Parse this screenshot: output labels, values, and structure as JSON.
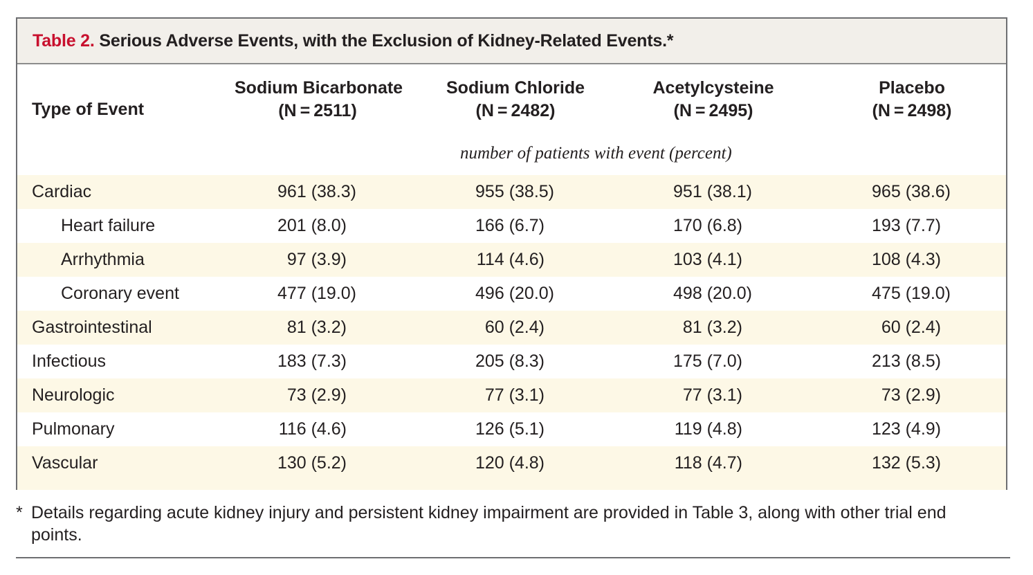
{
  "title": {
    "label": "Table 2.",
    "text": "Serious Adverse Events, with the Exclusion of Kidney-Related Events.*"
  },
  "columns": {
    "type_header": "Type of Event",
    "groups": [
      {
        "name": "Sodium Bicarbonate",
        "n": "(N = 2511)"
      },
      {
        "name": "Sodium Chloride",
        "n": "(N = 2482)"
      },
      {
        "name": "Acetylcysteine",
        "n": "(N = 2495)"
      },
      {
        "name": "Placebo",
        "n": "(N = 2498)"
      }
    ]
  },
  "units_note": "number of patients with event  (percent)",
  "rows": [
    {
      "label": "Cardiac",
      "indent": 0,
      "values": [
        "961 (38.3)",
        "955 (38.5)",
        "951 (38.1)",
        "965 (38.6)"
      ]
    },
    {
      "label": "Heart failure",
      "indent": 1,
      "values": [
        "201 (8.0)",
        "166 (6.7)",
        "170 (6.8)",
        "193 (7.7)"
      ]
    },
    {
      "label": "Arrhythmia",
      "indent": 1,
      "values": [
        "97 (3.9)",
        "114 (4.6)",
        "103 (4.1)",
        "108 (4.3)"
      ]
    },
    {
      "label": "Coronary event",
      "indent": 1,
      "values": [
        "477 (19.0)",
        "496 (20.0)",
        "498 (20.0)",
        "475 (19.0)"
      ]
    },
    {
      "label": "Gastrointestinal",
      "indent": 0,
      "values": [
        "81 (3.2)",
        "60 (2.4)",
        "81 (3.2)",
        "60 (2.4)"
      ]
    },
    {
      "label": "Infectious",
      "indent": 0,
      "values": [
        "183 (7.3)",
        "205 (8.3)",
        "175 (7.0)",
        "213 (8.5)"
      ]
    },
    {
      "label": "Neurologic",
      "indent": 0,
      "values": [
        "73 (2.9)",
        "77 (3.1)",
        "77 (3.1)",
        "73 (2.9)"
      ]
    },
    {
      "label": "Pulmonary",
      "indent": 0,
      "values": [
        "116 (4.6)",
        "126 (5.1)",
        "119 (4.8)",
        "123 (4.9)"
      ]
    },
    {
      "label": "Vascular",
      "indent": 0,
      "values": [
        "130 (5.2)",
        "120 (4.8)",
        "118 (4.7)",
        "132 (5.3)"
      ]
    }
  ],
  "footnote": {
    "marker": "*",
    "text": "Details regarding acute kidney injury and persistent kidney impairment are provided in Table 3, along with other trial end points."
  },
  "colors": {
    "title_label": "#c8102e",
    "title_bar_bg": "#f2efea",
    "row_shade": "#fdf8e6",
    "border": "#6d6e71"
  }
}
